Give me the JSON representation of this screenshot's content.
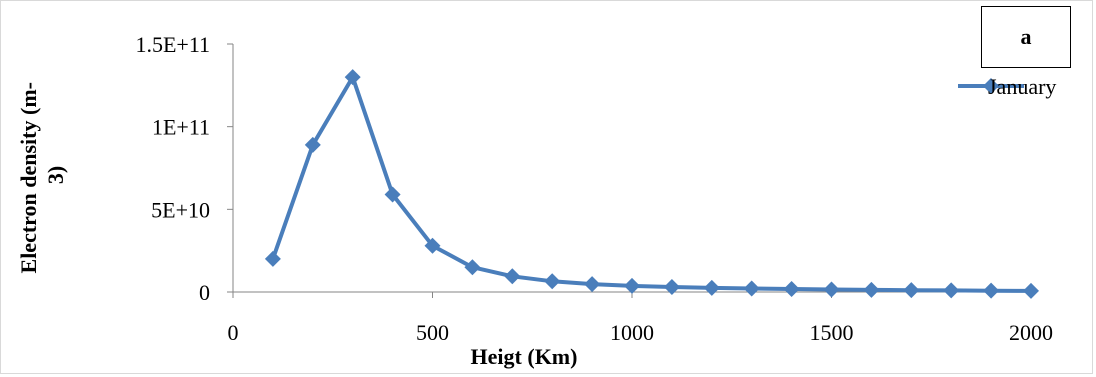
{
  "panel_label": "a",
  "colors": {
    "series": "#4a7ebb",
    "axis": "#868686"
  },
  "chart_data": {
    "type": "line",
    "title": "",
    "xlabel": "Heigt (Km)",
    "ylabel_lines": [
      "Electron density (m-",
      "3)"
    ],
    "xlim": [
      0,
      2000
    ],
    "ylim": [
      0,
      150000000000
    ],
    "x_ticks": [
      0,
      500,
      1000,
      1500,
      2000
    ],
    "x_tick_labels": [
      "0",
      "500",
      "1000",
      "1500",
      "2000"
    ],
    "y_ticks": [
      0,
      50000000000,
      100000000000,
      150000000000
    ],
    "y_tick_labels": [
      "0",
      "5E+10",
      "1E+11",
      "1.5E+11"
    ],
    "grid": false,
    "legend": "top-right",
    "series": [
      {
        "name": "January",
        "marker": "diamond",
        "x": [
          100,
          200,
          300,
          400,
          500,
          600,
          700,
          800,
          900,
          1000,
          1100,
          1200,
          1300,
          1400,
          1500,
          1600,
          1700,
          1800,
          1900,
          2000
        ],
        "y": [
          20000000000,
          89000000000,
          130000000000,
          59000000000,
          28000000000,
          15000000000,
          9500000000,
          6500000000,
          4800000000,
          3700000000,
          3000000000,
          2500000000,
          2100000000,
          1800000000,
          1500000000,
          1300000000,
          1100000000,
          950000000,
          800000000,
          650000000
        ]
      }
    ]
  }
}
